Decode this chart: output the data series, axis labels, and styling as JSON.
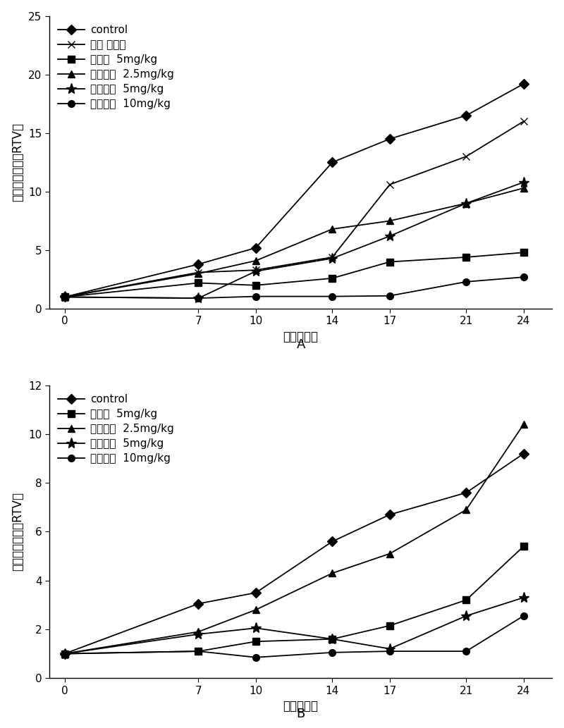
{
  "x_ticks": [
    0,
    7,
    10,
    14,
    17,
    21,
    24
  ],
  "chartA": {
    "title": "A",
    "ylabel": "相对肉瘤体积（RTV）",
    "xlabel": "时间（天）",
    "ylim": [
      0,
      25
    ],
    "yticks": [
      0,
      5,
      10,
      15,
      20,
      25
    ],
    "series": [
      {
        "label": "control",
        "marker": "D",
        "y": [
          1,
          3.8,
          5.2,
          12.5,
          14.5,
          16.5,
          19.2
        ]
      },
      {
        "label": "照光 不给药",
        "marker": "x",
        "y": [
          1,
          3.1,
          3.3,
          4.4,
          10.6,
          13.0,
          16.0
        ]
      },
      {
        "label": "血卤啊  5mg/kg",
        "marker": "s",
        "y": [
          1,
          2.2,
          2.0,
          2.6,
          4.0,
          4.4,
          4.8
        ]
      },
      {
        "label": "多替泊芬  2.5mg/kg",
        "marker": "^",
        "y": [
          1,
          3.0,
          4.1,
          6.8,
          7.5,
          9.0,
          10.3
        ]
      },
      {
        "label": "多替泊芬  5mg/kg",
        "marker": "*",
        "y": [
          1,
          0.9,
          3.2,
          4.3,
          6.2,
          9.0,
          10.8
        ]
      },
      {
        "label": "多替泊芬  10mg/kg",
        "marker": "o",
        "y": [
          1,
          0.9,
          1.05,
          1.05,
          1.1,
          2.3,
          2.7
        ]
      }
    ]
  },
  "chartB": {
    "title": "B",
    "ylabel": "相对肉瘤体积（RTV）",
    "xlabel": "时间（天）",
    "ylim": [
      0,
      12
    ],
    "yticks": [
      0,
      2,
      4,
      6,
      8,
      10,
      12
    ],
    "series": [
      {
        "label": "control",
        "marker": "D",
        "y": [
          1,
          3.05,
          3.5,
          5.6,
          6.7,
          7.6,
          9.2
        ]
      },
      {
        "label": "血卤啊  5mg/kg",
        "marker": "s",
        "y": [
          1,
          1.1,
          1.5,
          1.6,
          2.15,
          3.2,
          5.4
        ]
      },
      {
        "label": "多替泊芬  2.5mg/kg",
        "marker": "^",
        "y": [
          1,
          1.9,
          2.8,
          4.3,
          5.1,
          6.9,
          10.4
        ]
      },
      {
        "label": "多替泊芬  5mg/kg",
        "marker": "*",
        "y": [
          1,
          1.8,
          2.05,
          1.6,
          1.2,
          2.55,
          3.3
        ]
      },
      {
        "label": "多替泊芬  10mg/kg",
        "marker": "o",
        "y": [
          1,
          1.1,
          0.85,
          1.05,
          1.1,
          1.1,
          2.55
        ]
      }
    ]
  },
  "line_width": 1.3,
  "marker_size": 7,
  "star_marker_size": 11,
  "font_size_label": 12,
  "font_size_tick": 11,
  "font_size_legend": 11,
  "font_size_title": 13,
  "background_color": "#ffffff",
  "line_color": "#000000"
}
